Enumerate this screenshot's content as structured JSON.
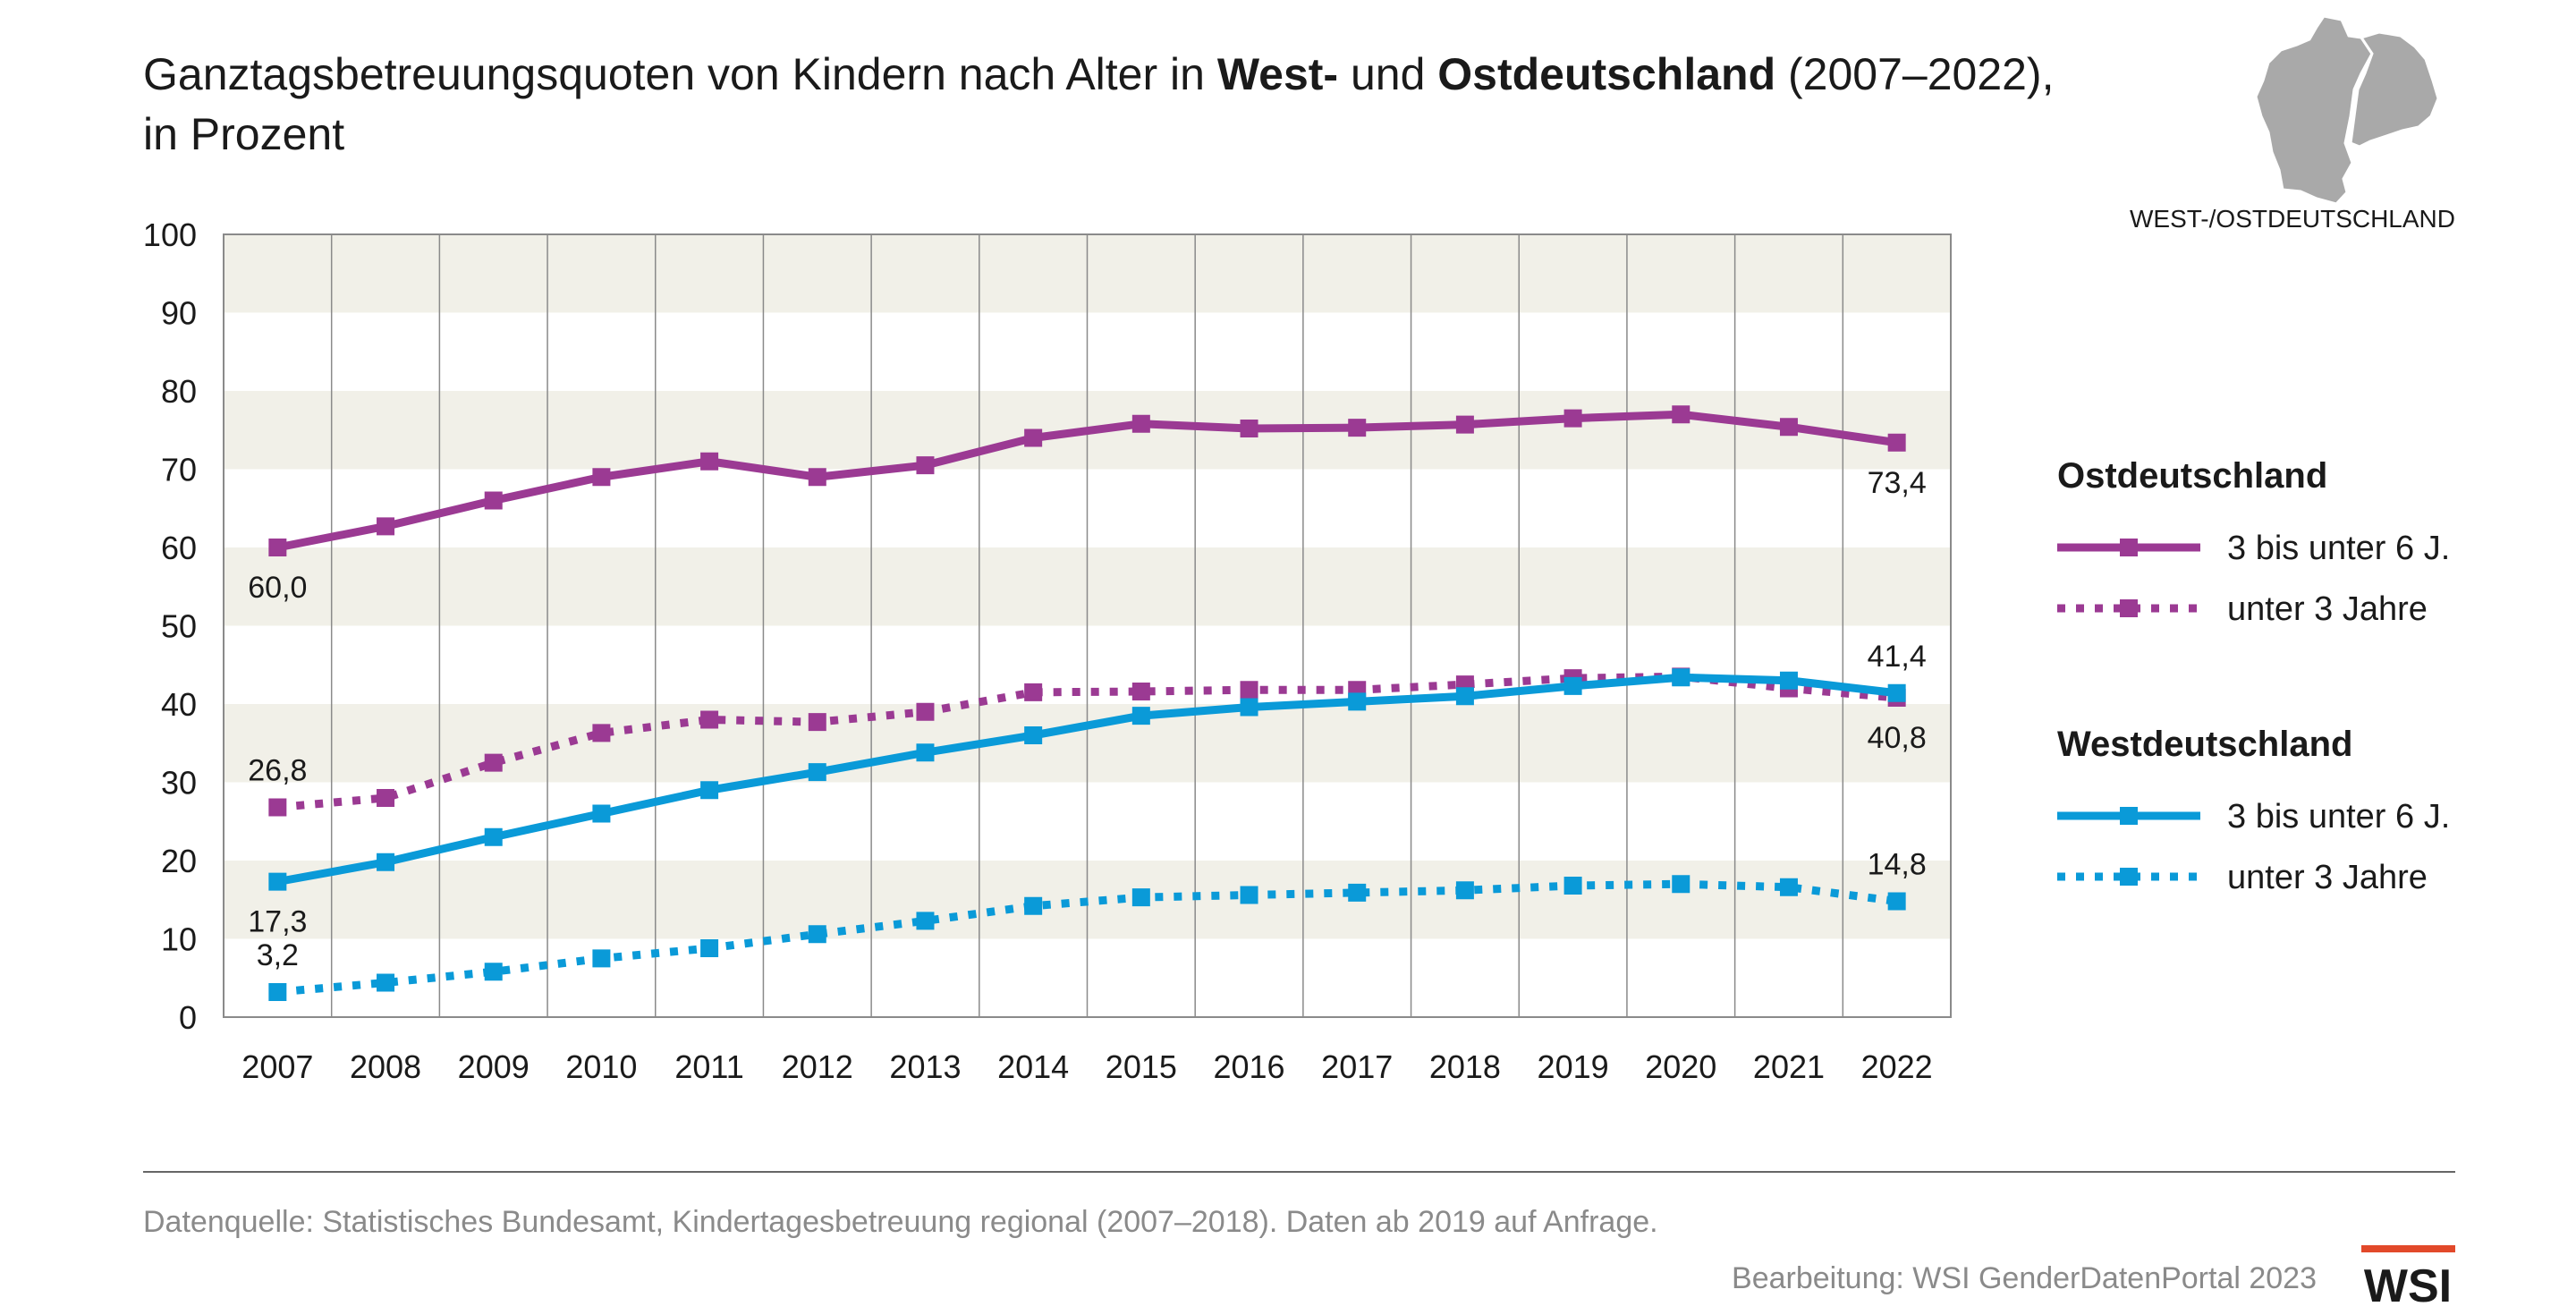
{
  "title": {
    "part1": "Ganztagsbetreuungsquoten von Kindern nach Alter in ",
    "bold1": "West-",
    "part2": " und ",
    "bold2": "Ostdeutschland",
    "part3": " (2007–2022),",
    "line2": "in Prozent"
  },
  "map_label": "WEST-/OSTDEUTSCHLAND",
  "source": "Datenquelle: Statistisches Bundesamt, Kindertagesbetreuung regional (2007–2018). Daten ab 2019 auf Anfrage.",
  "credit": "Bearbeitung: WSI GenderDatenPortal 2023",
  "logo": "WSI",
  "colors": {
    "ost": "#9b3a93",
    "west": "#0a9ad8",
    "band": "#f1f0e8",
    "grid": "#8a8a8a",
    "logo_bar": "#e2492a"
  },
  "legend": {
    "groups": [
      {
        "title": "Ostdeutschland",
        "items": [
          {
            "label": "3 bis unter 6 J.",
            "series": 0
          },
          {
            "label": "unter 3 Jahre",
            "series": 1
          }
        ]
      },
      {
        "title": "Westdeutschland",
        "items": [
          {
            "label": "3 bis unter 6 J.",
            "series": 2
          },
          {
            "label": "unter 3 Jahre",
            "series": 3
          }
        ]
      }
    ]
  },
  "chart_data": {
    "type": "line",
    "ylim": [
      0,
      100
    ],
    "yticks": [
      "0",
      "10",
      "20",
      "30",
      "40",
      "50",
      "60",
      "70",
      "80",
      "90",
      "100"
    ],
    "categories": [
      "2007",
      "2008",
      "2009",
      "2010",
      "2011",
      "2012",
      "2013",
      "2014",
      "2015",
      "2016",
      "2017",
      "2018",
      "2019",
      "2020",
      "2021",
      "2022"
    ],
    "grid": "vertical lines, alternating horizontal bands",
    "series": [
      {
        "name": "Ostdeutschland 3 bis unter 6 J.",
        "color": "ost",
        "style": "solid",
        "values": [
          60.0,
          62.7,
          66.0,
          69.0,
          71.0,
          69.0,
          70.5,
          74.0,
          75.8,
          75.2,
          75.3,
          75.7,
          76.5,
          77.0,
          75.4,
          73.4
        ]
      },
      {
        "name": "Ostdeutschland unter 3 Jahre",
        "color": "ost",
        "style": "dotted",
        "values": [
          26.8,
          28.0,
          32.5,
          36.3,
          38.0,
          37.7,
          39.0,
          41.5,
          41.6,
          41.8,
          41.8,
          42.5,
          43.3,
          43.5,
          42.0,
          40.8
        ]
      },
      {
        "name": "Westdeutschland 3 bis unter 6 J.",
        "color": "west",
        "style": "solid",
        "values": [
          17.3,
          19.8,
          23.0,
          26.0,
          29.0,
          31.3,
          33.8,
          36.0,
          38.5,
          39.6,
          40.3,
          41.0,
          42.3,
          43.4,
          43.0,
          41.4
        ]
      },
      {
        "name": "Westdeutschland unter 3 Jahre",
        "color": "west",
        "style": "dotted",
        "values": [
          3.2,
          4.4,
          5.8,
          7.5,
          8.8,
          10.6,
          12.3,
          14.2,
          15.3,
          15.6,
          15.9,
          16.2,
          16.8,
          17.0,
          16.6,
          14.8
        ]
      }
    ],
    "data_labels": [
      {
        "text": "60,0",
        "series": 0,
        "index": 0,
        "pos": "below"
      },
      {
        "text": "73,4",
        "series": 0,
        "index": 15,
        "pos": "below"
      },
      {
        "text": "26,8",
        "series": 1,
        "index": 0,
        "pos": "above"
      },
      {
        "text": "40,8",
        "series": 1,
        "index": 15,
        "pos": "below"
      },
      {
        "text": "17,3",
        "series": 2,
        "index": 0,
        "pos": "below"
      },
      {
        "text": "41,4",
        "series": 2,
        "index": 15,
        "pos": "above"
      },
      {
        "text": "3,2",
        "series": 3,
        "index": 0,
        "pos": "above"
      },
      {
        "text": "14,8",
        "series": 3,
        "index": 15,
        "pos": "above"
      }
    ]
  }
}
